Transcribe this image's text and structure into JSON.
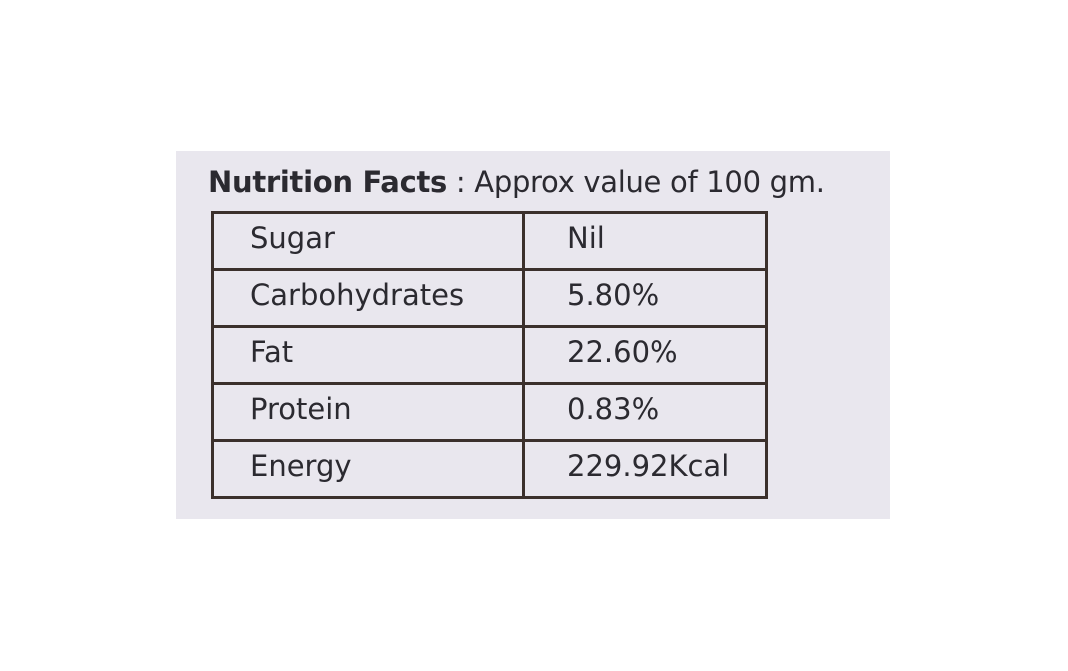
{
  "header": {
    "title_bold": "Nutrition Facts",
    "title_rest": ": Approx value of 100 gm."
  },
  "table": {
    "rows": [
      [
        "Sugar",
        "Nil"
      ],
      [
        "Carbohydrates",
        "5.80%"
      ],
      [
        "Fat",
        "22.60%"
      ],
      [
        "Protein",
        "0.83%"
      ],
      [
        "Energy",
        "229.92Kcal"
      ]
    ]
  }
}
